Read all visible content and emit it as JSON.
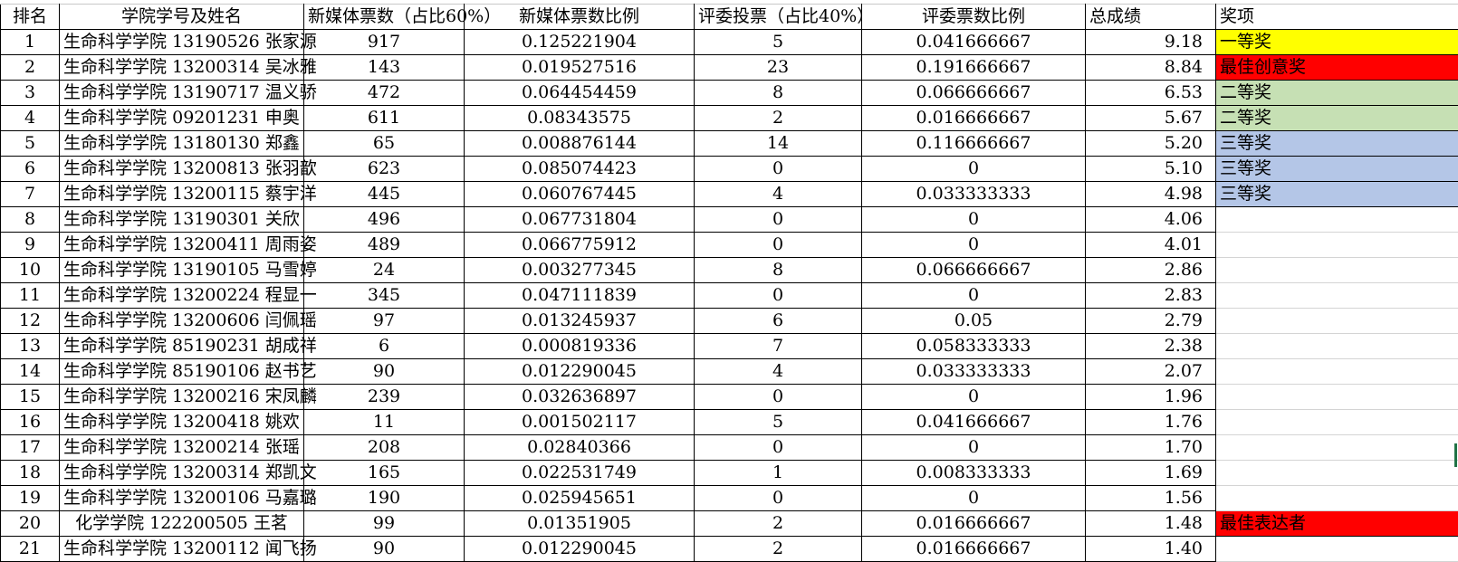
{
  "headers": [
    "排名",
    "学院学号及姓名",
    "新媒体票数（占比60%）",
    "新媒体票数比例",
    "评委投票（占比40%）",
    "评委票数比例",
    "总成绩",
    "奖项"
  ],
  "award_colors": {
    "一等奖": "#FFFF00",
    "最佳创意奖": "#FF0000",
    "二等奖": "#C6E0B4",
    "三等奖": "#B4C6E7",
    "最佳表达者": "#FF0000"
  },
  "rows": [
    [
      "1",
      "生命科学学院 13190526 张家源",
      "917",
      "0.125221904",
      "5",
      "0.041666667",
      "9.18",
      "一等奖"
    ],
    [
      "2",
      "生命科学学院 13200314 吴冰雅",
      "143",
      "0.019527516",
      "23",
      "0.191666667",
      "8.84",
      "最佳创意奖"
    ],
    [
      "3",
      "生命科学学院 13190717 温义骄",
      "472",
      "0.064454459",
      "8",
      "0.066666667",
      "6.53",
      "二等奖"
    ],
    [
      "4",
      "生命科学学院 09201231 申奥",
      "611",
      "0.08343575",
      "2",
      "0.016666667",
      "5.67",
      "二等奖"
    ],
    [
      "5",
      "生命科学学院 13180130 郑鑫",
      "65",
      "0.008876144",
      "14",
      "0.116666667",
      "5.20",
      "三等奖"
    ],
    [
      "6",
      "生命科学学院 13200813 张羽歆",
      "623",
      "0.085074423",
      "0",
      "0",
      "5.10",
      "三等奖"
    ],
    [
      "7",
      "生命科学学院 13200115 蔡宇洋",
      "445",
      "0.060767445",
      "4",
      "0.033333333",
      "4.98",
      "三等奖"
    ],
    [
      "8",
      "生命科学学院 13190301 关欣",
      "496",
      "0.067731804",
      "0",
      "0",
      "4.06",
      ""
    ],
    [
      "9",
      "生命科学学院 13200411 周雨姿",
      "489",
      "0.066775912",
      "0",
      "0",
      "4.01",
      ""
    ],
    [
      "10",
      "生命科学学院 13190105 马雪婷",
      "24",
      "0.003277345",
      "8",
      "0.066666667",
      "2.86",
      ""
    ],
    [
      "11",
      "生命科学学院 13200224 程显一",
      "345",
      "0.047111839",
      "0",
      "0",
      "2.83",
      ""
    ],
    [
      "12",
      "生命科学学院 13200606 闫佩瑶",
      "97",
      "0.013245937",
      "6",
      "0.05",
      "2.79",
      ""
    ],
    [
      "13",
      "生命科学学院 85190231 胡成祥",
      "6",
      "0.000819336",
      "7",
      "0.058333333",
      "2.38",
      ""
    ],
    [
      "14",
      "生命科学学院 85190106 赵书艺",
      "90",
      "0.012290045",
      "4",
      "0.033333333",
      "2.07",
      ""
    ],
    [
      "15",
      "生命科学学院 13200216 宋凤麟",
      "239",
      "0.032636897",
      "0",
      "0",
      "1.96",
      ""
    ],
    [
      "16",
      "生命科学学院 13200418 姚欢",
      "11",
      "0.001502117",
      "5",
      "0.041666667",
      "1.76",
      ""
    ],
    [
      "17",
      "生命科学学院 13200214 张瑶",
      "208",
      "0.02840366",
      "0",
      "0",
      "1.70",
      ""
    ],
    [
      "18",
      "生命科学学院 13200314 郑凯文",
      "165",
      "0.022531749",
      "1",
      "0.008333333",
      "1.69",
      ""
    ],
    [
      "19",
      "生命科学学院 13200106 马嘉璐",
      "190",
      "0.025945651",
      "0",
      "0",
      "1.56",
      ""
    ],
    [
      "20",
      "化学学院   122200505   王茗",
      "99",
      "0.01351905",
      "2",
      "0.016666667",
      "1.48",
      "最佳表达者"
    ],
    [
      "21",
      "生命科学学院 13200112 闻飞扬",
      "90",
      "0.012290045",
      "2",
      "0.016666667",
      "1.40",
      ""
    ]
  ]
}
